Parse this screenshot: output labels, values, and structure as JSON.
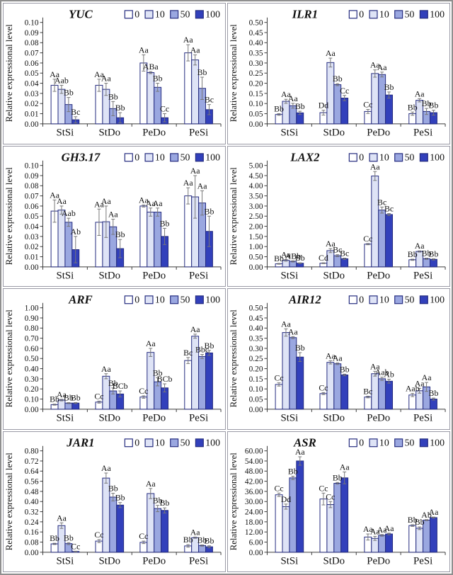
{
  "figure": {
    "layout": {
      "columns": 2,
      "rows": 4
    },
    "ylabel": "Relative expressional level",
    "categories": [
      "StSi",
      "StDo",
      "PeDo",
      "PeSi"
    ],
    "legend": {
      "labels": [
        "0",
        "10",
        "50",
        "100"
      ],
      "colors": [
        "#ffffff",
        "#dee3f6",
        "#9aa7e0",
        "#3240bb"
      ],
      "position": "top-right"
    },
    "colors": {
      "bar_border": "#232a7e",
      "error_bar": "#777777",
      "axis": "#3a3a3a",
      "text": "#111111",
      "panel_border": "#9a9aa6",
      "outer_border": "#8f8f8f",
      "background": "#ffffff"
    }
  },
  "chart_data": [
    {
      "type": "bar",
      "title": "YUC",
      "ylabel": "Relative expressional level",
      "categories": [
        "StSi",
        "StDo",
        "PeDo",
        "PeSi"
      ],
      "ylim": [
        0,
        0.1
      ],
      "ytick_step": 0.01,
      "grid": false,
      "legend_labels": [
        "0",
        "10",
        "50",
        "100"
      ],
      "series": [
        {
          "name": "0",
          "values": [
            0.038,
            0.038,
            0.06,
            0.07
          ],
          "errors": [
            0.006,
            0.006,
            0.008,
            0.008
          ],
          "letters": [
            "Aa",
            "Aa",
            "Aa",
            "Aa"
          ]
        },
        {
          "name": "10",
          "values": [
            0.034,
            0.034,
            0.0505,
            0.063
          ],
          "errors": [
            0.004,
            0.006,
            0.001,
            0.005
          ],
          "letters": [
            "Aab",
            "Aa",
            "ABa",
            "Aa"
          ]
        },
        {
          "name": "50",
          "values": [
            0.019,
            0.015,
            0.036,
            0.035
          ],
          "errors": [
            0.007,
            0.007,
            0.004,
            0.011
          ],
          "letters": [
            "Bb",
            "Bb",
            "Bb",
            "Bb"
          ]
        },
        {
          "name": "100",
          "values": [
            0.004,
            0.006,
            0.006,
            0.014
          ],
          "errors": [
            0.003,
            0.005,
            0.004,
            0.005
          ],
          "letters": [
            "Bc",
            "Bb",
            "Cc",
            "Bc"
          ]
        }
      ]
    },
    {
      "type": "bar",
      "title": "ILR1",
      "ylabel": "Relative expressional level",
      "categories": [
        "StSi",
        "StDo",
        "PeDo",
        "PeSi"
      ],
      "ylim": [
        0,
        0.5
      ],
      "ytick_step": 0.05,
      "grid": false,
      "legend_labels": [
        "0",
        "10",
        "50",
        "100"
      ],
      "series": [
        {
          "name": "0",
          "values": [
            0.046,
            0.055,
            0.061,
            0.05
          ],
          "errors": [
            0.004,
            0.012,
            0.01,
            0.008
          ],
          "letters": [
            "Bb",
            "Dd",
            "Cc",
            "Bb"
          ]
        },
        {
          "name": "10",
          "values": [
            0.111,
            0.302,
            0.248,
            0.116
          ],
          "errors": [
            0.01,
            0.022,
            0.018,
            0.008
          ],
          "letters": [
            "Aa",
            "Aa",
            "Aa",
            "Aa"
          ]
        },
        {
          "name": "50",
          "values": [
            0.089,
            0.193,
            0.243,
            0.061
          ],
          "errors": [
            0.012,
            0.005,
            0.012,
            0.015
          ],
          "letters": [
            "Aa",
            "Bb",
            "Aa",
            "Bb"
          ]
        },
        {
          "name": "100",
          "values": [
            0.054,
            0.127,
            0.142,
            0.055
          ],
          "errors": [
            0.008,
            0.013,
            0.015,
            0.012
          ],
          "letters": [
            "Bb",
            "Cc",
            "Bb",
            "Bb"
          ]
        }
      ]
    },
    {
      "type": "bar",
      "title": "GH3.17",
      "ylabel": "Relative expressional level",
      "categories": [
        "StSi",
        "StDo",
        "PeDo",
        "PeSi"
      ],
      "ylim": [
        0,
        0.1
      ],
      "ytick_step": 0.01,
      "grid": false,
      "legend_labels": [
        "0",
        "10",
        "50",
        "100"
      ],
      "series": [
        {
          "name": "0",
          "values": [
            0.055,
            0.044,
            0.06,
            0.07
          ],
          "errors": [
            0.011,
            0.013,
            0.001,
            0.008
          ],
          "letters": [
            "Aa",
            "Aa",
            "Aa",
            "Aa"
          ]
        },
        {
          "name": "10",
          "values": [
            0.056,
            0.0445,
            0.054,
            0.069
          ],
          "errors": [
            0.004,
            0.0155,
            0.004,
            0.021
          ],
          "letters": [
            "Aa",
            "Aa",
            "Aa",
            "Aa"
          ]
        },
        {
          "name": "50",
          "values": [
            0.044,
            0.0395,
            0.054,
            0.063
          ],
          "errors": [
            0.004,
            0.0075,
            0.004,
            0.012
          ],
          "letters": [
            "Aab",
            "Aa",
            "Aa",
            "Aa"
          ]
        },
        {
          "name": "100",
          "values": [
            0.017,
            0.018,
            0.03,
            0.035
          ],
          "errors": [
            0.013,
            0.009,
            0.008,
            0.015
          ],
          "letters": [
            "Ab",
            "Bb",
            "Bb",
            "Bb"
          ]
        }
      ]
    },
    {
      "type": "bar",
      "title": "LAX2",
      "ylabel": "Relative expressional level",
      "categories": [
        "StSi",
        "StDo",
        "PeDo",
        "PeSi"
      ],
      "ylim": [
        0,
        5.0
      ],
      "ytick_step": 0.5,
      "grid": false,
      "legend_labels": [
        "0",
        "10",
        "50",
        "100"
      ],
      "series": [
        {
          "name": "0",
          "values": [
            0.15,
            0.18,
            1.12,
            0.35
          ],
          "errors": [
            0.02,
            0.02,
            0.03,
            0.03
          ],
          "letters": [
            "Bb",
            "Cd",
            "Cc",
            "Bb"
          ]
        },
        {
          "name": "10",
          "values": [
            0.32,
            0.8,
            4.48,
            0.76
          ],
          "errors": [
            0.04,
            0.1,
            0.22,
            0.03
          ],
          "letters": [
            "Aa",
            "Aa",
            "Aa",
            "Aa"
          ]
        },
        {
          "name": "50",
          "values": [
            0.27,
            0.55,
            2.8,
            0.4
          ],
          "errors": [
            0.03,
            0.05,
            0.15,
            0.03
          ],
          "letters": [
            "ABb",
            "Bc",
            "Bc",
            "Bb"
          ]
        },
        {
          "name": "100",
          "values": [
            0.18,
            0.4,
            2.58,
            0.37
          ],
          "errors": [
            0.02,
            0.03,
            0.05,
            0.03
          ],
          "letters": [
            "Bb",
            "Bc",
            "Bc",
            "Bb"
          ]
        }
      ]
    },
    {
      "type": "bar",
      "title": "ARF",
      "ylabel": "Relative expressional level",
      "categories": [
        "StSi",
        "StDo",
        "PeDo",
        "PeSi"
      ],
      "ylim": [
        0,
        1.0
      ],
      "ytick_step": 0.1,
      "grid": false,
      "legend_labels": [
        "0",
        "10",
        "50",
        "100"
      ],
      "series": [
        {
          "name": "0",
          "values": [
            0.045,
            0.07,
            0.12,
            0.48
          ],
          "errors": [
            0.005,
            0.01,
            0.012,
            0.03
          ],
          "letters": [
            "Bb",
            "Cc",
            "Cc",
            "Bc"
          ]
        },
        {
          "name": "10",
          "values": [
            0.09,
            0.325,
            0.56,
            0.72
          ],
          "errors": [
            0.008,
            0.025,
            0.04,
            0.02
          ],
          "letters": [
            "Aa",
            "Aa",
            "Aa",
            "Aa"
          ]
        },
        {
          "name": "50",
          "values": [
            0.06,
            0.18,
            0.27,
            0.52
          ],
          "errors": [
            0.005,
            0.03,
            0.04,
            0.02
          ],
          "letters": [
            "Bb",
            "Bb",
            "Bb",
            "Bbc"
          ]
        },
        {
          "name": "100",
          "values": [
            0.06,
            0.15,
            0.21,
            0.555
          ],
          "errors": [
            0.005,
            0.03,
            0.04,
            0.025
          ],
          "letters": [
            "Bb",
            "BCb",
            "BCb",
            "Bb"
          ]
        }
      ]
    },
    {
      "type": "bar",
      "title": "AIR12",
      "ylabel": "Relative expressional level",
      "categories": [
        "StSi",
        "StDo",
        "PeDo",
        "PeSi"
      ],
      "ylim": [
        0,
        0.5
      ],
      "ytick_step": 0.05,
      "grid": false,
      "legend_labels": [
        "0",
        "10",
        "50",
        "100"
      ],
      "series": [
        {
          "name": "0",
          "values": [
            0.122,
            0.077,
            0.06,
            0.07
          ],
          "errors": [
            0.008,
            0.005,
            0.004,
            0.008
          ],
          "letters": [
            "Cc",
            "Cc",
            "Bc",
            "Aab"
          ]
        },
        {
          "name": "10",
          "values": [
            0.378,
            0.231,
            0.175,
            0.091
          ],
          "errors": [
            0.018,
            0.008,
            0.012,
            0.012
          ],
          "letters": [
            "Aa",
            "Aa",
            "Aa",
            "Aa"
          ]
        },
        {
          "name": "50",
          "values": [
            0.353,
            0.224,
            0.15,
            0.11
          ],
          "errors": [
            0.005,
            0.004,
            0.008,
            0.022
          ],
          "letters": [
            "Aa",
            "Aa",
            "Aab",
            "Aa"
          ]
        },
        {
          "name": "100",
          "values": [
            0.257,
            0.169,
            0.138,
            0.05
          ],
          "errors": [
            0.022,
            0.004,
            0.01,
            0.005
          ],
          "letters": [
            "Bb",
            "Bb",
            "Ab",
            "Bb"
          ]
        }
      ]
    },
    {
      "type": "bar",
      "title": "JAR1",
      "ylabel": "Relative expressional level",
      "categories": [
        "StSi",
        "StDo",
        "PeDo",
        "PeSi"
      ],
      "ylim": [
        0,
        0.8
      ],
      "ytick_step": 0.08,
      "grid": false,
      "legend_labels": [
        "0",
        "10",
        "50",
        "100"
      ],
      "series": [
        {
          "name": "0",
          "values": [
            0.066,
            0.088,
            0.078,
            0.05
          ],
          "errors": [
            0.005,
            0.012,
            0.01,
            0.01
          ],
          "letters": [
            "Bb",
            "Cc",
            "Cc",
            "Bb"
          ]
        },
        {
          "name": "10",
          "values": [
            0.21,
            0.585,
            0.463,
            0.115
          ],
          "errors": [
            0.022,
            0.04,
            0.04,
            0.005
          ],
          "letters": [
            "Aa",
            "Aa",
            "Aa",
            "Aa"
          ]
        },
        {
          "name": "50",
          "values": [
            0.068,
            0.435,
            0.345,
            0.053
          ],
          "errors": [
            0.008,
            0.03,
            0.025,
            0.005
          ],
          "letters": [
            "Bb",
            "Bb",
            "Bb",
            "Bb"
          ]
        },
        {
          "name": "100",
          "values": [
            0.006,
            0.372,
            0.33,
            0.043
          ],
          "errors": [
            0.002,
            0.02,
            0.02,
            0.008
          ],
          "letters": [
            "Cc",
            "Bb",
            "Bb",
            "Bb"
          ]
        }
      ]
    },
    {
      "type": "bar",
      "title": "ASR",
      "ylabel": "Relative expressional level",
      "categories": [
        "StSi",
        "StDo",
        "PeDo",
        "PeSi"
      ],
      "ylim": [
        0,
        60.0
      ],
      "ytick_step": 6.0,
      "grid": false,
      "legend_labels": [
        "0",
        "10",
        "50",
        "100"
      ],
      "series": [
        {
          "name": "0",
          "values": [
            34.0,
            31.5,
            9.0,
            15.8
          ],
          "errors": [
            1.0,
            3.5,
            1.8,
            0.5
          ],
          "letters": [
            "Cc",
            "Cc",
            "Aa",
            "Bb"
          ]
        },
        {
          "name": "10",
          "values": [
            27.0,
            28.2,
            8.2,
            14.2
          ],
          "errors": [
            1.5,
            1.8,
            1.2,
            0.8
          ],
          "letters": [
            "Dd",
            "Cc",
            "Aa",
            "Bb"
          ]
        },
        {
          "name": "50",
          "values": [
            44.0,
            40.8,
            10.0,
            19.0
          ],
          "errors": [
            1.0,
            0.5,
            0.5,
            0.3
          ],
          "letters": [
            "Bb",
            "Bb",
            "Aa",
            "Ab"
          ]
        },
        {
          "name": "100",
          "values": [
            54.0,
            44.0,
            10.8,
            20.5
          ],
          "errors": [
            2.5,
            3.5,
            0.5,
            0.3
          ],
          "letters": [
            "Aa",
            "Aa",
            "Aa",
            "Aa"
          ]
        }
      ]
    }
  ]
}
